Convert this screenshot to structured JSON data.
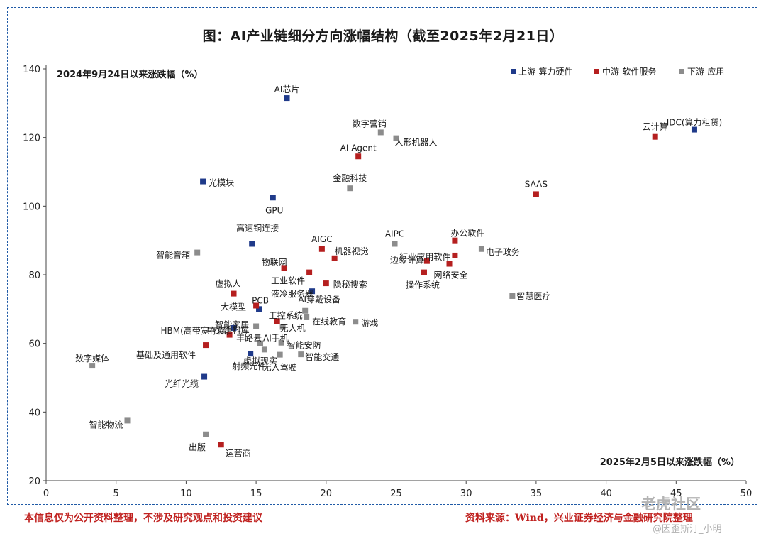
{
  "title": "图：AI产业链细分方向涨幅结构（截至2025年2月21日）",
  "footer": {
    "disclaimer": "本信息仅为公开资料整理，不涉及研究观点和投资建议",
    "source": "资料来源：Wind，兴业证券经济与金融研究院整理"
  },
  "watermark": {
    "brand": "老虎社区",
    "user": "@因歪斯汀_小明"
  },
  "colors": {
    "upstream": "#1f3a8a",
    "midstream": "#b51f1f",
    "downstream": "#8c8c8c"
  },
  "chart_data": {
    "type": "scatter",
    "title": "图：AI产业链细分方向涨幅结构（截至2025年2月21日）",
    "xlabel": "2025年2月5日以来涨跌幅（%）",
    "ylabel": "2024年9月24日以来涨跌幅（%）",
    "xlim": [
      0,
      50
    ],
    "ylim": [
      20,
      140
    ],
    "xticks": [
      "0",
      "5",
      "10",
      "15",
      "20",
      "25",
      "30",
      "35",
      "40",
      "45",
      "50"
    ],
    "yticks": [
      "20",
      "40",
      "60",
      "80",
      "100",
      "120",
      "140"
    ],
    "legend_position": "top-right",
    "series": [
      {
        "name": "上游-算力硬件",
        "color": "#1f3a8a",
        "points": [
          {
            "label": "AI芯片",
            "x": 17.2,
            "y": 131.5
          },
          {
            "label": "IDC(算力租赁)",
            "x": 46.3,
            "y": 122.3
          },
          {
            "label": "光模块",
            "x": 11.2,
            "y": 107.2
          },
          {
            "label": "GPU",
            "x": 16.2,
            "y": 102.5
          },
          {
            "label": "高速铜连接",
            "x": 14.7,
            "y": 89.0
          },
          {
            "label": "液冷服务器",
            "x": 19.0,
            "y": 75.2
          },
          {
            "label": "PCB",
            "x": 15.2,
            "y": 70.0
          },
          {
            "label": "HBM(高带宽存储)",
            "x": 13.4,
            "y": 64.5
          },
          {
            "label": "光纤光缆",
            "x": 11.3,
            "y": 50.3
          },
          {
            "label": "射频元件",
            "x": 14.6,
            "y": 57.0
          }
        ]
      },
      {
        "name": "中游-软件服务",
        "color": "#b51f1f",
        "points": [
          {
            "label": "云计算",
            "x": 43.5,
            "y": 120.2
          },
          {
            "label": "AI Agent",
            "x": 22.3,
            "y": 114.5
          },
          {
            "label": "SAAS",
            "x": 35.0,
            "y": 103.5
          },
          {
            "label": "AIGC",
            "x": 19.7,
            "y": 87.5
          },
          {
            "label": "办公软件",
            "x": 29.2,
            "y": 90.0
          },
          {
            "label": "机器视觉",
            "x": 20.6,
            "y": 84.8
          },
          {
            "label": "行业应用软件",
            "x": 29.2,
            "y": 85.6
          },
          {
            "label": "物联网",
            "x": 17.0,
            "y": 82.0
          },
          {
            "label": "边缘计算",
            "x": 27.2,
            "y": 84.0
          },
          {
            "label": "工业软件",
            "x": 18.8,
            "y": 80.7
          },
          {
            "label": "网络安全",
            "x": 28.8,
            "y": 83.2
          },
          {
            "label": "操作系统",
            "x": 27.0,
            "y": 80.7
          },
          {
            "label": "隐秘搜索",
            "x": 20.0,
            "y": 77.5
          },
          {
            "label": "虚拟人",
            "x": 13.4,
            "y": 74.5
          },
          {
            "label": "大模型",
            "x": 15.0,
            "y": 71.0
          },
          {
            "label": "工控系统",
            "x": 16.5,
            "y": 66.5
          },
          {
            "label": "中文语料库",
            "x": 13.1,
            "y": 62.5
          },
          {
            "label": "基础及通用软件",
            "x": 11.4,
            "y": 59.5
          },
          {
            "label": "运营商",
            "x": 12.5,
            "y": 30.5
          }
        ]
      },
      {
        "name": "下游-应用",
        "color": "#8c8c8c",
        "points": [
          {
            "label": "数字营销",
            "x": 23.9,
            "y": 121.5
          },
          {
            "label": "人形机器人",
            "x": 25.0,
            "y": 119.8
          },
          {
            "label": "金融科技",
            "x": 21.7,
            "y": 105.2
          },
          {
            "label": "AIPC",
            "x": 24.9,
            "y": 89.0
          },
          {
            "label": "电子政务",
            "x": 31.1,
            "y": 87.5
          },
          {
            "label": "智能音箱",
            "x": 10.8,
            "y": 86.5
          },
          {
            "label": "智慧医疗",
            "x": 33.3,
            "y": 73.8
          },
          {
            "label": "AI穿戴设备",
            "x": 18.5,
            "y": 69.5
          },
          {
            "label": "在线教育",
            "x": 18.6,
            "y": 67.8
          },
          {
            "label": "智能家居",
            "x": 15.0,
            "y": 65.0
          },
          {
            "label": "游戏",
            "x": 22.1,
            "y": 66.3
          },
          {
            "label": "无人机",
            "x": 16.9,
            "y": 64.8
          },
          {
            "label": "丰路云",
            "x": 15.1,
            "y": 62.0
          },
          {
            "label": "AI手机",
            "x": 15.3,
            "y": 60.0
          },
          {
            "label": "智能安防",
            "x": 16.8,
            "y": 60.2
          },
          {
            "label": "虚拟现实",
            "x": 15.6,
            "y": 58.2
          },
          {
            "label": "无人驾驶",
            "x": 16.7,
            "y": 56.7
          },
          {
            "label": "智能交通",
            "x": 18.2,
            "y": 56.8
          },
          {
            "label": "数字媒体",
            "x": 3.3,
            "y": 53.5
          },
          {
            "label": "智能物流",
            "x": 5.8,
            "y": 37.5
          },
          {
            "label": "出版",
            "x": 11.4,
            "y": 33.5
          }
        ]
      }
    ]
  }
}
